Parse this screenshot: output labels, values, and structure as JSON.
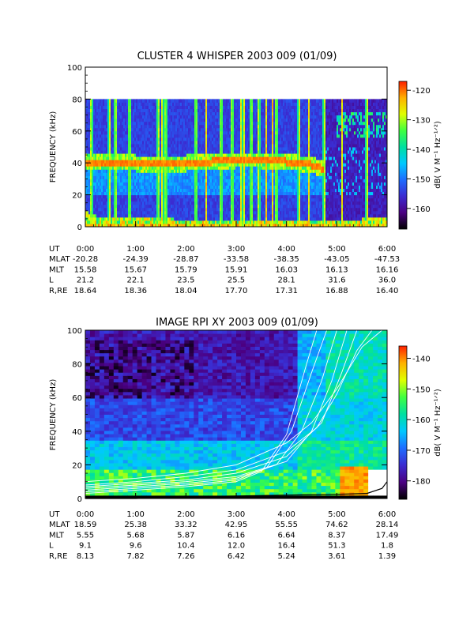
{
  "chart_data": [
    {
      "type": "heatmap",
      "title": "CLUSTER 4 WHISPER 2003 009 (01/09)",
      "ylabel": "FREQUENCY (kHz)",
      "ylim": [
        0,
        100
      ],
      "yticks": [
        "0",
        "20",
        "40",
        "60",
        "80",
        "100"
      ],
      "xticks": [
        "0:00",
        "1:00",
        "2:00",
        "3:00",
        "4:00",
        "5:00",
        "6:00"
      ],
      "xlim_hours": [
        0,
        6
      ],
      "data_ymax_khz": 80,
      "colorbar": {
        "label": "dB( V M⁻¹ Hz⁻¹ᐟ²)",
        "range": [
          -167,
          -117
        ],
        "ticks": [
          "-120",
          "-130",
          "-140",
          "-150",
          "-160"
        ],
        "colors": [
          "#000000",
          "#4b0082",
          "#3b2bd0",
          "#1e6cff",
          "#00c8ff",
          "#00e0a0",
          "#40ff40",
          "#e0ff00",
          "#ffb000",
          "#ff2000"
        ]
      },
      "ephemeris": {
        "labels": [
          "UT",
          "MLAT",
          "MLT",
          "L",
          "R,RE"
        ],
        "rows": [
          [
            "0:00",
            "1:00",
            "2:00",
            "3:00",
            "4:00",
            "5:00",
            "6:00"
          ],
          [
            "-20.28",
            "-24.39",
            "-28.87",
            "-33.58",
            "-38.35",
            "-43.05",
            "-47.53"
          ],
          [
            "15.58",
            "15.67",
            "15.79",
            "15.91",
            "16.03",
            "16.13",
            "16.16"
          ],
          [
            "21.2",
            "22.1",
            "23.5",
            "25.5",
            "28.1",
            "31.6",
            "36.0"
          ],
          [
            "18.64",
            "18.36",
            "18.04",
            "17.70",
            "17.31",
            "16.88",
            "16.40"
          ]
        ]
      },
      "bands": [
        {
          "name": "plasma line",
          "t": [
            0,
            0.5,
            1.0,
            1.5,
            2.0,
            2.5,
            3.0,
            3.5,
            4.0,
            4.5,
            4.75
          ],
          "f": [
            40,
            41,
            40,
            39,
            40,
            41,
            42,
            42,
            41,
            39,
            36
          ]
        },
        {
          "name": "low-frequency emission",
          "t": [
            0,
            0.3,
            4.7,
            5.0,
            6.0
          ],
          "f": [
            10,
            6,
            3,
            4,
            6
          ]
        }
      ],
      "bursts_hours": [
        0.12,
        0.48,
        0.6,
        0.88,
        1.45,
        1.53,
        1.6,
        2.2,
        2.4,
        2.7,
        2.92,
        3.1,
        3.15,
        3.3,
        3.45,
        3.6,
        3.72,
        3.8,
        4.25,
        4.45,
        4.75,
        5.1,
        5.6
      ]
    },
    {
      "type": "heatmap",
      "title": "IMAGE RPI XY 2003 009 (01/09)",
      "ylabel": "FREQUENCY (kHz)",
      "ylim": [
        0,
        100
      ],
      "yticks": [
        "0",
        "20",
        "40",
        "60",
        "80",
        "100"
      ],
      "xticks": [
        "0:00",
        "1:00",
        "2:00",
        "3:00",
        "4:00",
        "5:00",
        "6:00"
      ],
      "xlim_hours": [
        0,
        6
      ],
      "colorbar": {
        "label": "dB( V M⁻¹ Hz⁻¹ᐟ²)",
        "range": [
          -186,
          -136
        ],
        "ticks": [
          "-140",
          "-150",
          "-160",
          "-170",
          "-180"
        ],
        "colors": [
          "#000000",
          "#4b0082",
          "#3b2bd0",
          "#1e6cff",
          "#00c8ff",
          "#00e0a0",
          "#40ff40",
          "#e0ff00",
          "#ffb000",
          "#ff2000"
        ]
      },
      "ephemeris": {
        "labels": [
          "UT",
          "MLAT",
          "MLT",
          "L",
          "R,RE"
        ],
        "rows": [
          [
            "0:00",
            "1:00",
            "2:00",
            "3:00",
            "4:00",
            "5:00",
            "6:00"
          ],
          [
            "18.59",
            "25.38",
            "33.32",
            "42.95",
            "55.55",
            "74.62",
            "28.14"
          ],
          [
            "5.55",
            "5.68",
            "5.87",
            "6.16",
            "6.64",
            "8.37",
            "17.49"
          ],
          [
            "9.1",
            "9.6",
            "10.4",
            "12.0",
            "16.4",
            "51.3",
            "1.8"
          ],
          [
            "8.13",
            "7.82",
            "7.26",
            "6.42",
            "5.24",
            "3.61",
            "1.39"
          ]
        ]
      },
      "overlay_curves": [
        {
          "t": [
            0,
            1,
            2,
            3,
            4,
            4.5,
            5,
            5.5,
            5.9
          ],
          "f": [
            10,
            12,
            15,
            20,
            33,
            45,
            65,
            90,
            100
          ]
        },
        {
          "t": [
            0,
            1,
            2,
            3,
            4,
            4.6,
            5,
            5.4,
            5.7
          ],
          "f": [
            8,
            10,
            13,
            17,
            28,
            42,
            62,
            88,
            100
          ]
        },
        {
          "t": [
            0,
            1,
            2,
            3,
            4,
            4.7,
            5.1,
            5.4
          ],
          "f": [
            7,
            9,
            11,
            15,
            25,
            45,
            75,
            100
          ]
        },
        {
          "t": [
            0,
            1,
            2,
            3,
            4,
            4.5,
            4.9,
            5.2
          ],
          "f": [
            6,
            8,
            10,
            13,
            22,
            40,
            70,
            100
          ]
        },
        {
          "t": [
            0,
            1,
            2,
            3,
            3.8,
            4.3,
            4.7,
            5.0
          ],
          "f": [
            5,
            7,
            9,
            12,
            20,
            40,
            70,
            100
          ]
        },
        {
          "t": [
            0,
            1,
            2,
            3,
            3.6,
            4.1,
            4.5,
            4.8
          ],
          "f": [
            4,
            6,
            8,
            11,
            18,
            40,
            75,
            100
          ]
        },
        {
          "t": [
            0,
            1,
            2,
            3,
            3.5,
            4.0,
            4.4,
            4.6
          ],
          "f": [
            3,
            5,
            7,
            10,
            16,
            38,
            80,
            100
          ]
        }
      ],
      "lower_boundary": {
        "t": [
          0,
          1,
          2,
          3,
          4,
          5,
          5.6,
          5.9,
          6
        ],
        "f": [
          0,
          0,
          1,
          1.5,
          2,
          2.5,
          3,
          6,
          10
        ]
      }
    }
  ]
}
